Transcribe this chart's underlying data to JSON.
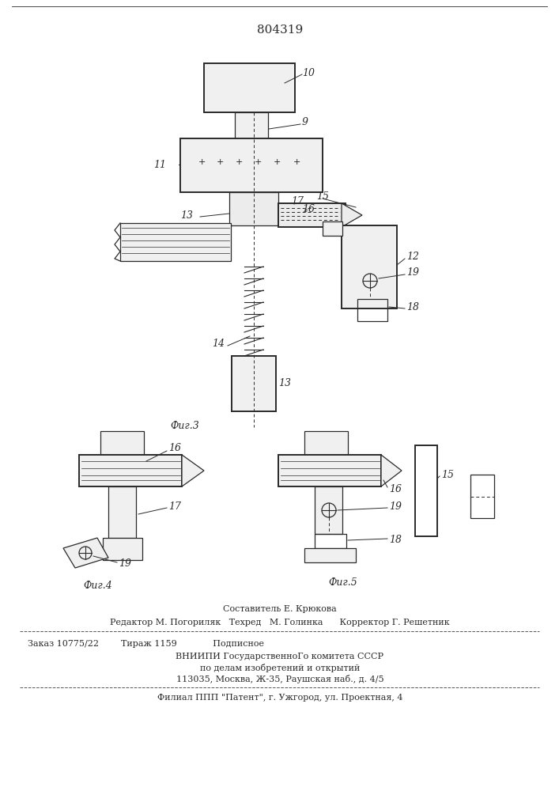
{
  "patent_number": "804319",
  "background_color": "#ffffff",
  "line_color": "#2a2a2a",
  "fig3_label": "Фиг.3",
  "fig4_label": "Фиг.4",
  "fig5_label": "Фиг.5",
  "footer_line0": "Составитель Е. Крюкова",
  "footer_line1": "Редактор М. Погориляк   Техред   М. Голинка      Корректор Г. Решетник",
  "footer_line2": "Заказ 10775/22        Тираж 1159             Подписное",
  "footer_line3": "ВНИИПИ ГосударственноГо комитета СССР",
  "footer_line4": "по делам изобретений и открытий",
  "footer_line5": "113035, Москва, Ж-35, Раушская наб., д. 4/5",
  "footer_line6": "Филиал ППП \"Патент\", г. Ужгород, ул. Проектная, 4"
}
